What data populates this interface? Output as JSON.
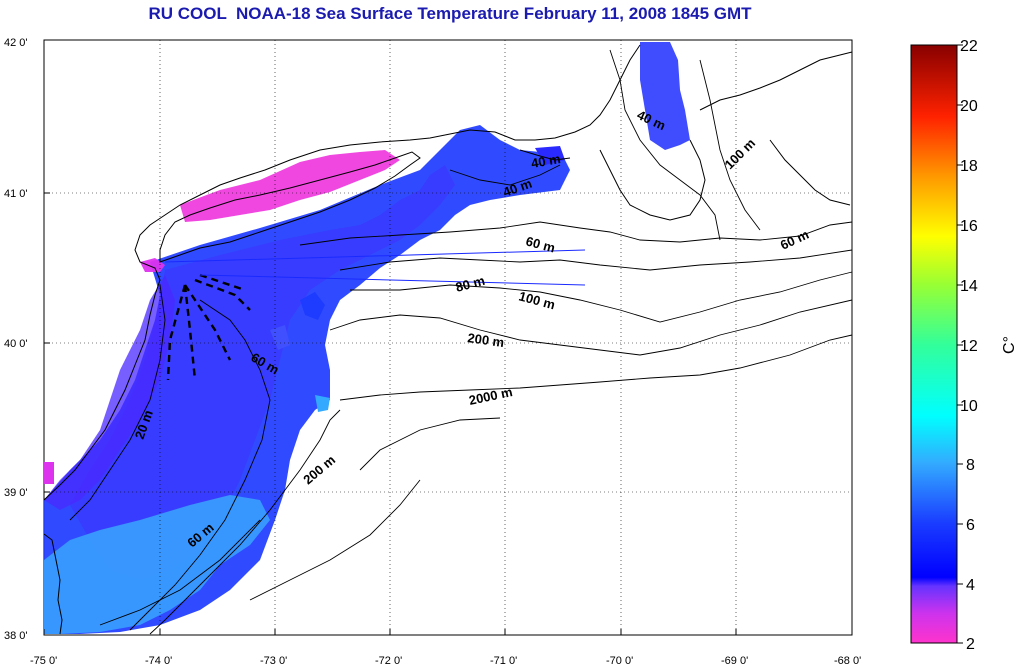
{
  "title": "RU COOL  NOAA-18 Sea Surface Temperature February 11, 2008 1845 GMT",
  "lat_ticks": [
    "42 0'",
    "41 0'",
    "40 0'",
    "39 0'",
    "38 0'"
  ],
  "lon_ticks": [
    "-75 0'",
    "-74 0'",
    "-73 0'",
    "-72 0'",
    "-71 0'",
    "-70 0'",
    "-69 0'",
    "-68 0'"
  ],
  "contour_labels": [
    "40 m",
    "40 m",
    "40 m",
    "100 m",
    "60 m",
    "60 m",
    "80 m",
    "100 m",
    "200 m",
    "60 m",
    "20 m",
    "2000 m",
    "200 m",
    "60 m"
  ],
  "colorbar": {
    "unit": "C°",
    "ticks": [
      "22",
      "20",
      "18",
      "16",
      "14",
      "12",
      "10",
      "8",
      "6",
      "4",
      "2"
    ],
    "min": 2,
    "max": 22
  },
  "colors": {
    "title": "#1b1bb0",
    "sst_cold": "#ff33cc",
    "sst_4c": "#6633ff",
    "sst_6c": "#1a3cff",
    "sst_8c": "#33aaff",
    "sst_warm": "#880000"
  }
}
